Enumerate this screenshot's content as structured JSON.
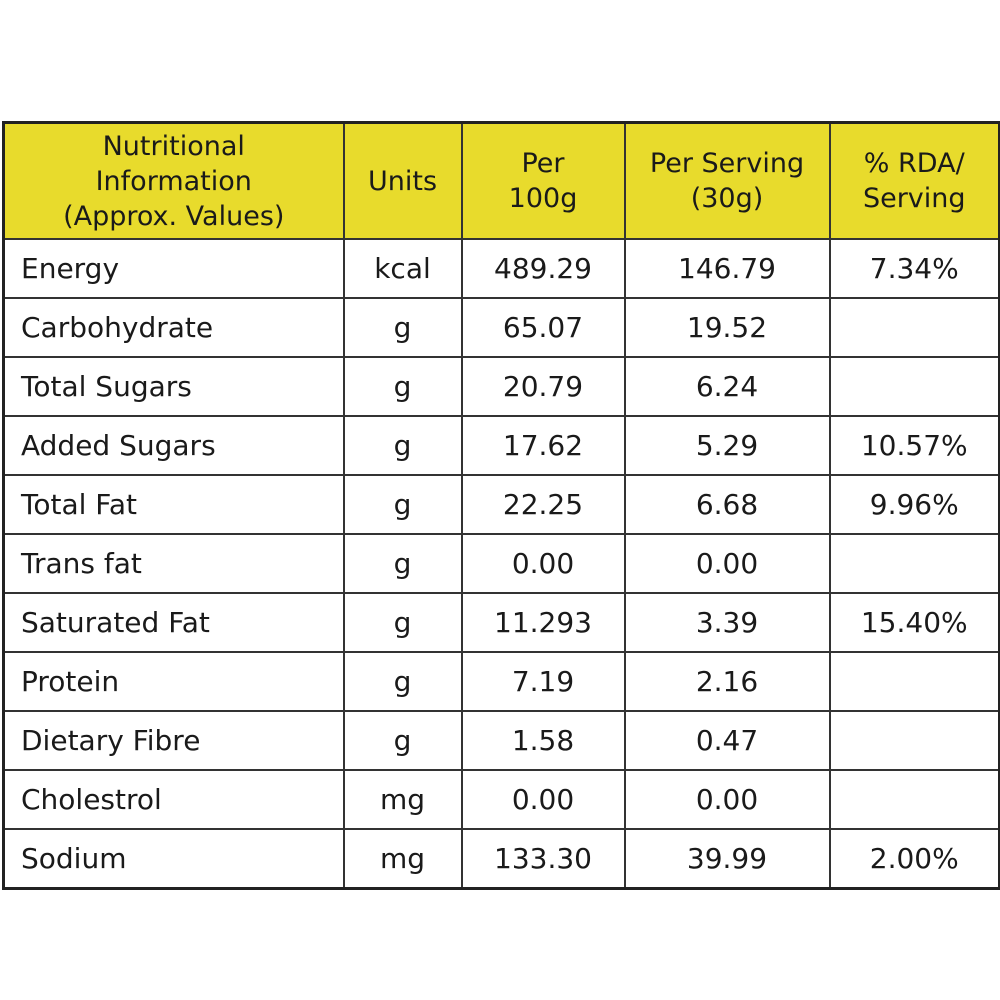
{
  "table": {
    "header_color": "#e8db2c",
    "headers": {
      "nutritional_information": "Nutritional\nInformation\n(Approx. Values)",
      "units": "Units",
      "per_100g": "Per\n100g",
      "per_serving": "Per Serving\n(30g)",
      "rda_serving": "% RDA/\nServing"
    },
    "rows": [
      {
        "name": "Energy",
        "units": "kcal",
        "per_100g": "489.29",
        "per_serving": "146.79",
        "rda": "7.34%"
      },
      {
        "name": "Carbohydrate",
        "units": "g",
        "per_100g": "65.07",
        "per_serving": "19.52",
        "rda": ""
      },
      {
        "name": "Total Sugars",
        "units": "g",
        "per_100g": "20.79",
        "per_serving": "6.24",
        "rda": ""
      },
      {
        "name": "Added Sugars",
        "units": "g",
        "per_100g": "17.62",
        "per_serving": "5.29",
        "rda": "10.57%"
      },
      {
        "name": "Total Fat",
        "units": "g",
        "per_100g": "22.25",
        "per_serving": "6.68",
        "rda": "9.96%"
      },
      {
        "name": "Trans fat",
        "units": "g",
        "per_100g": "0.00",
        "per_serving": "0.00",
        "rda": ""
      },
      {
        "name": "Saturated Fat",
        "units": "g",
        "per_100g": "11.293",
        "per_serving": "3.39",
        "rda": "15.40%"
      },
      {
        "name": "Protein",
        "units": "g",
        "per_100g": "7.19",
        "per_serving": "2.16",
        "rda": ""
      },
      {
        "name": "Dietary Fibre",
        "units": "g",
        "per_100g": "1.58",
        "per_serving": "0.47",
        "rda": ""
      },
      {
        "name": "Cholestrol",
        "units": "mg",
        "per_100g": "0.00",
        "per_serving": "0.00",
        "rda": ""
      },
      {
        "name": "Sodium",
        "units": "mg",
        "per_100g": "133.30",
        "per_serving": "39.99",
        "rda": "2.00%"
      }
    ]
  }
}
